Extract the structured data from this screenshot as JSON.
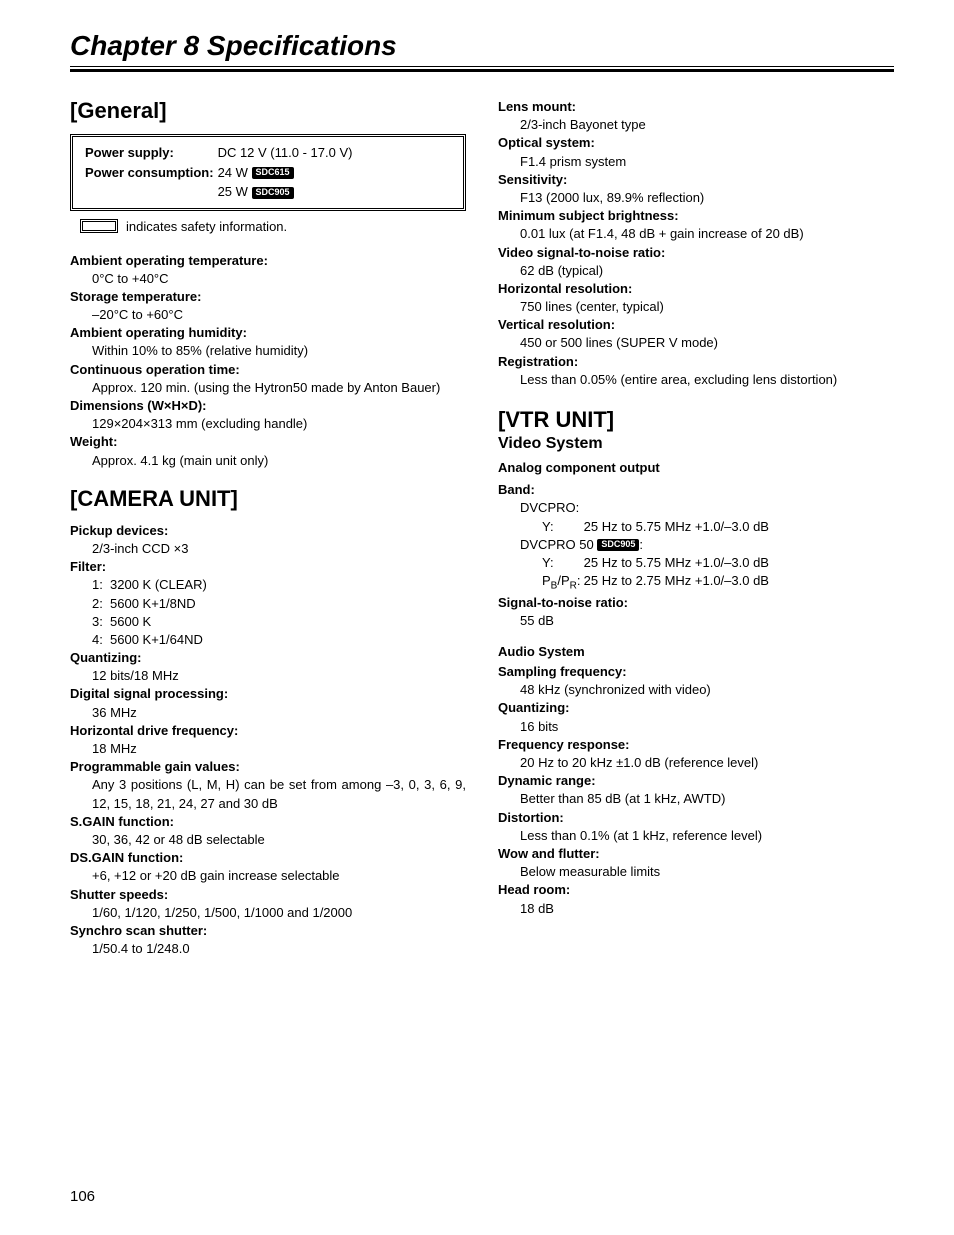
{
  "chapter_title": "Chapter 8  Specifications",
  "page_number": "106",
  "colors": {
    "text": "#000000",
    "bg": "#ffffff"
  },
  "left": {
    "general": {
      "heading": "[General]",
      "box": {
        "power_supply_label": "Power supply:",
        "power_supply_value": "DC 12 V (11.0 - 17.0 V)",
        "power_consumption_label": "Power consumption:",
        "pc_row1_value": "24 W",
        "pc_row1_badge": "SDC615",
        "pc_row2_value": "25 W",
        "pc_row2_badge": "SDC905"
      },
      "safety_note": "indicates safety information.",
      "specs": [
        {
          "label": "Ambient operating temperature:",
          "value": "0°C to +40°C"
        },
        {
          "label": "Storage temperature:",
          "value": "–20°C to +60°C"
        },
        {
          "label": "Ambient operating humidity:",
          "value": "Within 10% to 85% (relative humidity)"
        },
        {
          "label": "Continuous operation time:",
          "value": "Approx. 120 min. (using the Hytron50 made by Anton Bauer)",
          "justify": true
        },
        {
          "label": "Dimensions (W×H×D):",
          "value": "129×204×313 mm (excluding handle)"
        },
        {
          "label": "Weight:",
          "value": "Approx. 4.1 kg (main unit only)"
        }
      ]
    },
    "camera": {
      "heading": "[CAMERA UNIT]",
      "pickup_label": "Pickup devices:",
      "pickup_value": "2/3-inch CCD ×3",
      "filter_label": "Filter:",
      "filters": [
        {
          "n": "1:",
          "v": "3200 K (CLEAR)"
        },
        {
          "n": "2:",
          "v": "5600 K+1/8ND"
        },
        {
          "n": "3:",
          "v": "5600 K"
        },
        {
          "n": "4:",
          "v": "5600 K+1/64ND"
        }
      ],
      "specs": [
        {
          "label": "Quantizing:",
          "value": "12 bits/18 MHz"
        },
        {
          "label": "Digital signal processing:",
          "value": "36 MHz"
        },
        {
          "label": "Horizontal drive frequency:",
          "value": "18 MHz"
        },
        {
          "label": "Programmable gain values:",
          "value": "Any 3 positions (L, M, H) can be set from among –3, 0, 3, 6, 9, 12, 15, 18, 21, 24, 27 and 30 dB",
          "justify": true
        },
        {
          "label": "S.GAIN function:",
          "value": "30, 36, 42 or 48 dB selectable"
        },
        {
          "label": "DS.GAIN function:",
          "value": "+6, +12 or +20 dB gain increase selectable"
        },
        {
          "label": "Shutter speeds:",
          "value": "1/60, 1/120, 1/250, 1/500, 1/1000 and 1/2000"
        },
        {
          "label": "Synchro scan shutter:",
          "value": "1/50.4 to 1/248.0"
        }
      ]
    }
  },
  "right": {
    "top_specs": [
      {
        "label": "Lens mount:",
        "value": "2/3-inch Bayonet type"
      },
      {
        "label": "Optical system:",
        "value": "F1.4 prism system"
      },
      {
        "label": "Sensitivity:",
        "value": "F13 (2000 lux, 89.9% reflection)"
      },
      {
        "label": "Minimum subject brightness:",
        "value": "0.01 lux (at F1.4, 48 dB + gain increase of 20 dB)"
      },
      {
        "label": "Video signal-to-noise ratio:",
        "value": "62 dB (typical)"
      },
      {
        "label": "Horizontal resolution:",
        "value": "750 lines (center, typical)"
      },
      {
        "label": "Vertical resolution:",
        "value": "450 or 500 lines (SUPER V mode)"
      },
      {
        "label": "Registration:",
        "value": "Less than 0.05% (entire area, excluding lens distortion)"
      }
    ],
    "vtr": {
      "heading": "[VTR UNIT]",
      "video_system": "Video System",
      "analog_component": "Analog component output",
      "band_label": "Band:",
      "band": {
        "dvcpro_label": "DVCPRO:",
        "dvcpro_y_label": "Y:",
        "dvcpro_y_value": "25 Hz to 5.75 MHz +1.0/–3.0 dB",
        "dvcpro50_label": "DVCPRO 50",
        "dvcpro50_badge": "SDC905",
        "dvcpro50_colon": ":",
        "dvcpro50_y_label": "Y:",
        "dvcpro50_y_value": "25 Hz to 5.75 MHz +1.0/–3.0 dB",
        "pbpr_label_pre": "P",
        "pbpr_label_b": "B",
        "pbpr_label_slash": "/P",
        "pbpr_label_r": "R",
        "pbpr_label_post": ":",
        "pbpr_value": "25 Hz to 2.75 MHz +1.0/–3.0 dB"
      },
      "snr_label": "Signal-to-noise ratio:",
      "snr_value": "55 dB",
      "audio_system": "Audio System",
      "audio_specs": [
        {
          "label": "Sampling frequency:",
          "value": "48 kHz (synchronized with video)"
        },
        {
          "label": "Quantizing:",
          "value": "16 bits"
        },
        {
          "label": "Frequency response:",
          "value": "20 Hz to 20 kHz ±1.0 dB (reference level)"
        },
        {
          "label": "Dynamic range:",
          "value": "Better than 85 dB (at 1 kHz, AWTD)"
        },
        {
          "label": "Distortion:",
          "value": "Less than 0.1% (at 1 kHz, reference level)"
        },
        {
          "label": "Wow and flutter:",
          "value": "Below measurable limits"
        },
        {
          "label": "Head room:",
          "value": "18 dB"
        }
      ]
    }
  }
}
